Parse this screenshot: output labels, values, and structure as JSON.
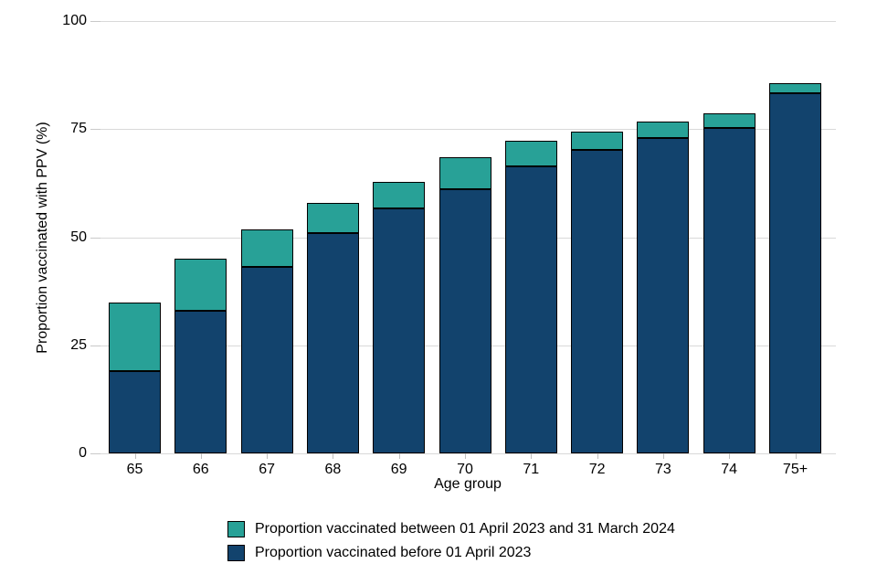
{
  "chart_data": {
    "type": "bar",
    "stacked": true,
    "title": "",
    "xlabel": "Age group",
    "ylabel": "Proportion vaccinated with PPV (%)",
    "ylim": [
      0,
      100
    ],
    "yticks": [
      0,
      25,
      50,
      75,
      100
    ],
    "grid": true,
    "legend_position": "bottom",
    "categories": [
      "65",
      "66",
      "67",
      "68",
      "69",
      "70",
      "71",
      "72",
      "73",
      "74",
      "75+"
    ],
    "series": [
      {
        "name": "Proportion vaccinated before 01 April 2023",
        "color": "#12436D",
        "values": [
          19.0,
          33.0,
          43.2,
          51.0,
          56.7,
          61.0,
          66.4,
          70.2,
          72.9,
          75.3,
          83.2
        ]
      },
      {
        "name": "Proportion vaccinated between 01 April 2023 and 31 March 2024",
        "color": "#28A197",
        "values": [
          15.8,
          12.0,
          8.6,
          7.0,
          6.2,
          7.5,
          5.9,
          4.2,
          3.9,
          3.3,
          2.4
        ]
      }
    ],
    "stacked_totals": [
      34.8,
      45.0,
      51.8,
      58.0,
      62.9,
      68.5,
      72.3,
      74.4,
      76.8,
      78.6,
      85.6
    ]
  },
  "axes": {
    "x_label": "Age group",
    "y_label": "Proportion vaccinated with PPV (%)",
    "y_tick_labels": [
      "0",
      "25",
      "50",
      "75",
      "100"
    ]
  },
  "legend": {
    "items": [
      {
        "label": "Proportion vaccinated between 01 April 2023 and 31 March 2024",
        "color": "#28A197"
      },
      {
        "label": "Proportion vaccinated before 01 April 2023",
        "color": "#12436D"
      }
    ]
  },
  "colors": {
    "teal": "#28A197",
    "dark_blue": "#12436D",
    "gridline": "#D9D9D9",
    "tick": "#C9C9C9",
    "bar_border": "#000000",
    "text": "#000000",
    "background": "#FFFFFF"
  }
}
